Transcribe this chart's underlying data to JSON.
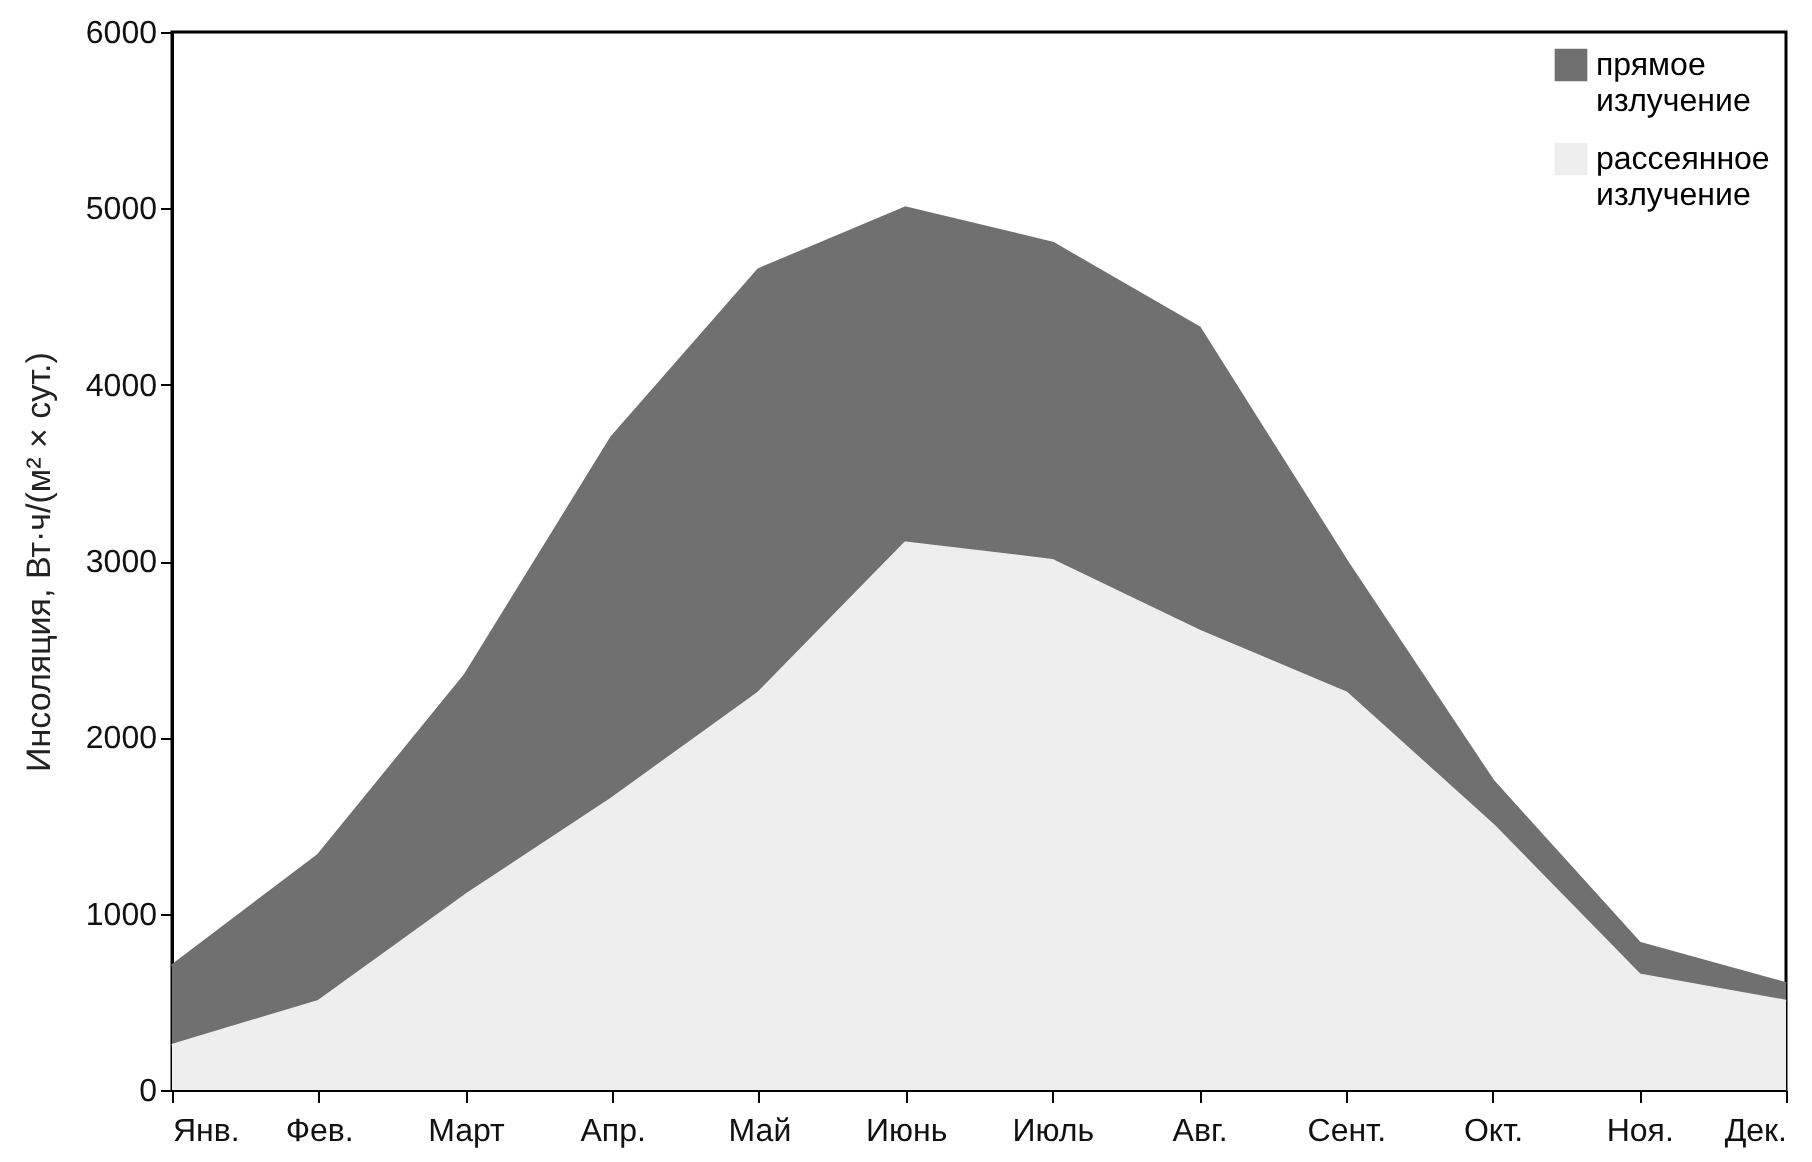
{
  "chart_data": {
    "type": "area",
    "stacked": true,
    "ylabel": "Инсоляция, Вт·ч/(м² × сут.)",
    "categories": [
      "Янв.",
      "Фев.",
      "Март",
      "Апр.",
      "Май",
      "Июнь",
      "Июль",
      "Авг.",
      "Сент.",
      "Окт.",
      "Ноя.",
      "Дек."
    ],
    "series": [
      {
        "name": "рассеянное излучение",
        "color": "#eeeeee",
        "values": [
          250,
          500,
          1100,
          1650,
          2250,
          3100,
          3000,
          2600,
          2250,
          1500,
          650,
          500
        ]
      },
      {
        "name": "прямое излучение",
        "color": "#707070",
        "values": [
          450,
          830,
          1250,
          2050,
          2400,
          1900,
          1800,
          1720,
          750,
          250,
          180,
          100
        ]
      }
    ],
    "ylim": [
      0,
      6000
    ],
    "yticks": [
      0,
      1000,
      2000,
      3000,
      4000,
      5000,
      6000
    ],
    "grid": false,
    "legend": "top right"
  }
}
